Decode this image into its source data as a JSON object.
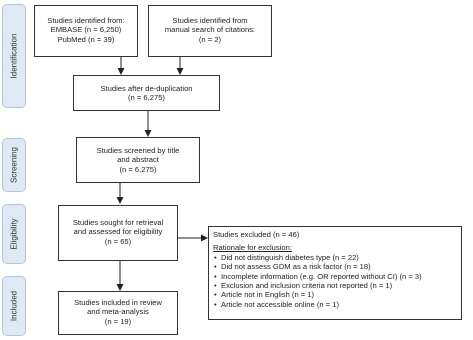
{
  "phases": [
    "Identification",
    "Screening",
    "Eligibility",
    "Included"
  ],
  "boxes": {
    "identified_db": [
      "Studies identified from:",
      "EMBASE (n = 6,250)",
      "PubMed (n = 39)"
    ],
    "identified_manual": [
      "Studies identified from",
      "manual search of citations:",
      "(n = 2)"
    ],
    "dedup": [
      "Studies after de-duplication",
      "(n = 6,275)"
    ],
    "screened": [
      "Studies screened by title",
      "and abstract",
      "(n = 6,275)"
    ],
    "retrieval": [
      "Studies sought for retrieval",
      "and assessed for eligibility",
      "(n = 65)"
    ],
    "included": [
      "Studies included in review",
      "and meta-analysis",
      "(n = 19)"
    ]
  },
  "excluded": {
    "heading": "Studies excluded (n = 46)",
    "subheading": "Rationale for exclusion:",
    "reasons": [
      "Did not distinguish diabetes type (n = 22)",
      "Did not assess GDM as a risk factor (n = 18)",
      "Incomplete information (e.g. OR reported without CI) (n = 3)",
      "Exclusion and inclusion criteria not reported (n = 1)",
      "Article not in English (n = 1)",
      "Article not accessible online (n = 1)"
    ]
  }
}
